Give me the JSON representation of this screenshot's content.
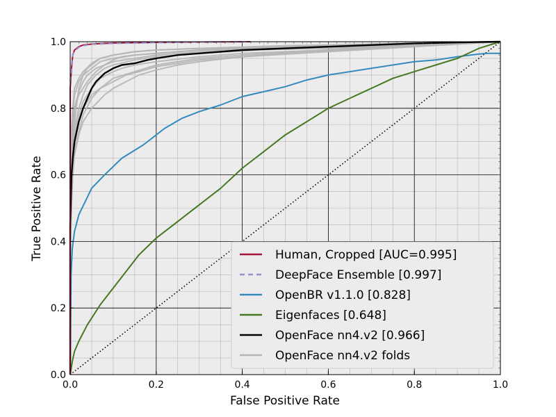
{
  "chart_data": {
    "type": "line",
    "xlabel": "False Positive Rate",
    "ylabel": "True Positive Rate",
    "xlim": [
      0.0,
      1.0
    ],
    "ylim": [
      0.0,
      1.0
    ],
    "xticks": [
      "0.0",
      "0.2",
      "0.4",
      "0.6",
      "0.8",
      "1.0"
    ],
    "yticks": [
      "0.0",
      "0.2",
      "0.4",
      "0.6",
      "0.8",
      "1.0"
    ],
    "grid": "major and minor",
    "background": "#ececec",
    "legend_position": "lower-right",
    "diagonal": "dotted black reference line",
    "series": [
      {
        "name": "Human, Cropped [AUC=0.995]",
        "color": "#a6163a",
        "style": "solid",
        "x": [
          0.0,
          0.0,
          0.003,
          0.006,
          0.01,
          0.02,
          0.03,
          0.05,
          0.1,
          0.2,
          0.3,
          0.42
        ],
        "y": [
          0.0,
          0.86,
          0.92,
          0.96,
          0.975,
          0.985,
          0.99,
          0.993,
          0.996,
          0.998,
          0.999,
          1.0
        ]
      },
      {
        "name": "DeepFace Ensemble [0.997]",
        "color": "#9b8fc8",
        "style": "dashed",
        "x": [
          0.0,
          0.003,
          0.006,
          0.01,
          0.02,
          0.03,
          0.05,
          0.1,
          0.2,
          0.3,
          0.42
        ],
        "y": [
          0.88,
          0.93,
          0.96,
          0.972,
          0.983,
          0.988,
          0.992,
          0.995,
          0.997,
          0.999,
          1.0
        ]
      },
      {
        "name": "OpenBR v1.1.0 [0.828]",
        "color": "#348abd",
        "style": "solid",
        "x": [
          0.0,
          0.002,
          0.005,
          0.01,
          0.02,
          0.035,
          0.05,
          0.08,
          0.12,
          0.17,
          0.22,
          0.26,
          0.3,
          0.35,
          0.4,
          0.45,
          0.5,
          0.55,
          0.6,
          0.65,
          0.7,
          0.75,
          0.8,
          0.85,
          0.9,
          0.95,
          0.97,
          1.0
        ],
        "y": [
          0.0,
          0.3,
          0.38,
          0.43,
          0.48,
          0.52,
          0.56,
          0.6,
          0.65,
          0.69,
          0.74,
          0.77,
          0.79,
          0.81,
          0.835,
          0.85,
          0.865,
          0.885,
          0.9,
          0.91,
          0.92,
          0.93,
          0.94,
          0.945,
          0.955,
          0.963,
          0.965,
          0.965
        ]
      },
      {
        "name": "Eigenfaces [0.648]",
        "color": "#467821",
        "style": "solid",
        "x": [
          0.0,
          0.005,
          0.01,
          0.02,
          0.04,
          0.07,
          0.1,
          0.13,
          0.16,
          0.2,
          0.25,
          0.3,
          0.35,
          0.4,
          0.45,
          0.5,
          0.55,
          0.6,
          0.65,
          0.7,
          0.75,
          0.8,
          0.85,
          0.9,
          0.95,
          1.0
        ],
        "y": [
          0.0,
          0.04,
          0.07,
          0.1,
          0.15,
          0.21,
          0.26,
          0.31,
          0.36,
          0.41,
          0.46,
          0.51,
          0.56,
          0.62,
          0.67,
          0.72,
          0.76,
          0.8,
          0.83,
          0.86,
          0.89,
          0.91,
          0.93,
          0.95,
          0.98,
          1.0
        ]
      },
      {
        "name": "OpenFace nn4.v2 [0.966]",
        "color": "#000000",
        "style": "solid",
        "x": [
          0.0,
          0.0,
          0.003,
          0.006,
          0.01,
          0.015,
          0.02,
          0.03,
          0.04,
          0.05,
          0.06,
          0.08,
          0.1,
          0.12,
          0.15,
          0.18,
          0.2,
          0.25,
          0.3,
          0.35,
          0.4,
          0.5,
          0.6,
          0.7,
          0.8,
          0.9,
          1.0
        ],
        "y": [
          0.0,
          0.45,
          0.6,
          0.65,
          0.7,
          0.73,
          0.76,
          0.8,
          0.83,
          0.86,
          0.88,
          0.905,
          0.92,
          0.93,
          0.935,
          0.945,
          0.95,
          0.96,
          0.965,
          0.97,
          0.975,
          0.98,
          0.985,
          0.99,
          0.995,
          0.998,
          1.0
        ]
      },
      {
        "name": "OpenFace nn4.v2 folds",
        "color": "#b5b5b5",
        "style": "solid",
        "folds": [
          {
            "x": [
              0.0,
              0.003,
              0.006,
              0.01,
              0.02,
              0.03,
              0.04,
              0.05,
              0.07,
              0.1,
              0.15,
              0.2,
              0.3,
              0.5,
              0.7,
              1.0
            ],
            "y": [
              0.52,
              0.62,
              0.7,
              0.76,
              0.86,
              0.9,
              0.92,
              0.93,
              0.95,
              0.96,
              0.97,
              0.975,
              0.98,
              0.985,
              0.99,
              1.0
            ]
          },
          {
            "x": [
              0.0,
              0.003,
              0.006,
              0.01,
              0.02,
              0.03,
              0.05,
              0.07,
              0.1,
              0.13,
              0.16,
              0.2,
              0.25,
              0.3,
              0.4,
              0.6,
              0.8,
              1.0
            ],
            "y": [
              0.42,
              0.55,
              0.62,
              0.68,
              0.73,
              0.78,
              0.83,
              0.86,
              0.88,
              0.9,
              0.91,
              0.925,
              0.935,
              0.945,
              0.955,
              0.97,
              0.985,
              1.0
            ]
          },
          {
            "x": [
              0.0,
              0.003,
              0.006,
              0.01,
              0.02,
              0.03,
              0.04,
              0.06,
              0.08,
              0.1,
              0.15,
              0.2,
              0.3,
              0.4,
              0.6,
              0.8,
              1.0
            ],
            "y": [
              0.5,
              0.63,
              0.72,
              0.8,
              0.85,
              0.88,
              0.9,
              0.92,
              0.93,
              0.94,
              0.95,
              0.96,
              0.97,
              0.975,
              0.98,
              0.99,
              1.0
            ]
          },
          {
            "x": [
              0.0,
              0.003,
              0.006,
              0.01,
              0.02,
              0.03,
              0.05,
              0.07,
              0.1,
              0.15,
              0.2,
              0.3,
              0.5,
              0.7,
              1.0
            ],
            "y": [
              0.6,
              0.7,
              0.78,
              0.84,
              0.88,
              0.9,
              0.92,
              0.94,
              0.95,
              0.96,
              0.965,
              0.975,
              0.985,
              0.99,
              1.0
            ]
          },
          {
            "x": [
              0.0,
              0.003,
              0.006,
              0.01,
              0.02,
              0.03,
              0.05,
              0.08,
              0.1,
              0.15,
              0.2,
              0.25,
              0.3,
              0.4,
              0.6,
              0.8,
              1.0
            ],
            "y": [
              0.4,
              0.55,
              0.63,
              0.7,
              0.76,
              0.8,
              0.84,
              0.87,
              0.89,
              0.91,
              0.93,
              0.94,
              0.95,
              0.96,
              0.975,
              0.99,
              1.0
            ]
          },
          {
            "x": [
              0.0,
              0.003,
              0.006,
              0.01,
              0.02,
              0.04,
              0.06,
              0.08,
              0.1,
              0.12,
              0.15,
              0.2,
              0.3,
              0.5,
              0.8,
              1.0
            ],
            "y": [
              0.55,
              0.66,
              0.74,
              0.8,
              0.84,
              0.88,
              0.91,
              0.93,
              0.945,
              0.955,
              0.96,
              0.965,
              0.975,
              0.98,
              0.99,
              1.0
            ]
          },
          {
            "x": [
              0.0,
              0.003,
              0.006,
              0.01,
              0.02,
              0.03,
              0.05,
              0.07,
              0.1,
              0.12,
              0.15,
              0.2,
              0.3,
              0.4,
              0.6,
              0.8,
              1.0
            ],
            "y": [
              0.45,
              0.58,
              0.66,
              0.72,
              0.78,
              0.82,
              0.86,
              0.89,
              0.91,
              0.92,
              0.93,
              0.94,
              0.955,
              0.965,
              0.975,
              0.99,
              1.0
            ]
          },
          {
            "x": [
              0.0,
              0.003,
              0.006,
              0.01,
              0.02,
              0.03,
              0.05,
              0.07,
              0.1,
              0.15,
              0.2,
              0.3,
              0.5,
              0.7,
              1.0
            ],
            "y": [
              0.62,
              0.74,
              0.8,
              0.86,
              0.89,
              0.91,
              0.935,
              0.95,
              0.96,
              0.97,
              0.975,
              0.98,
              0.988,
              0.993,
              1.0
            ]
          },
          {
            "x": [
              0.0,
              0.003,
              0.006,
              0.01,
              0.02,
              0.03,
              0.05,
              0.08,
              0.1,
              0.13,
              0.16,
              0.2,
              0.25,
              0.3,
              0.4,
              0.5,
              0.7,
              1.0
            ],
            "y": [
              0.38,
              0.5,
              0.6,
              0.66,
              0.72,
              0.76,
              0.8,
              0.84,
              0.86,
              0.88,
              0.9,
              0.915,
              0.93,
              0.94,
              0.955,
              0.965,
              0.98,
              1.0
            ]
          },
          {
            "x": [
              0.0,
              0.003,
              0.006,
              0.01,
              0.02,
              0.03,
              0.04,
              0.06,
              0.08,
              0.1,
              0.15,
              0.2,
              0.3,
              0.5,
              0.8,
              1.0
            ],
            "y": [
              0.5,
              0.6,
              0.68,
              0.74,
              0.8,
              0.84,
              0.87,
              0.9,
              0.92,
              0.93,
              0.945,
              0.955,
              0.965,
              0.98,
              0.99,
              1.0
            ]
          }
        ]
      }
    ]
  }
}
